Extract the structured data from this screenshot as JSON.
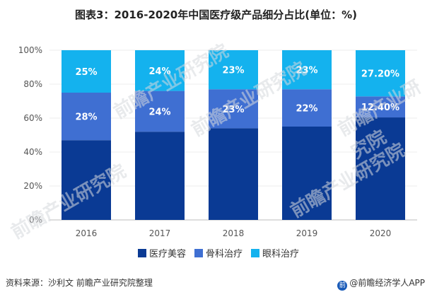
{
  "title": "图表3：2016-2020年中国医疗级产品细分占比(单位：%)",
  "footer": {
    "source": "资料来源：沙利文 前瞻产业研究院整理",
    "brand": "@前瞻经济学人APP"
  },
  "watermark_text": "前瞻产业研究院",
  "colors": {
    "medical_beauty": "#0a3a94",
    "orthopedic": "#3f6fd2",
    "ophthalmic": "#14b2ee"
  },
  "chart_data": {
    "type": "bar",
    "stacked": true,
    "categories": [
      "2016",
      "2017",
      "2018",
      "2019",
      "2020"
    ],
    "ylim": [
      0,
      100
    ],
    "yticks": [
      "0%",
      "20%",
      "40%",
      "60%",
      "80%",
      "100%"
    ],
    "ytick_values": [
      0,
      20,
      40,
      60,
      80,
      100
    ],
    "xlabel": "",
    "ylabel": "",
    "legend_position": "bottom",
    "series": [
      {
        "name": "医疗美容",
        "values": [
          47,
          52,
          54,
          55,
          60.4
        ],
        "labels": [
          "",
          "",
          "",
          "",
          ""
        ]
      },
      {
        "name": "骨科治疗",
        "values": [
          28,
          24,
          23,
          22,
          12.4
        ],
        "labels": [
          "28%",
          "24%",
          "23%",
          "22%",
          "12.40%"
        ]
      },
      {
        "name": "眼科治疗",
        "values": [
          25,
          24,
          23,
          23,
          27.2
        ],
        "labels": [
          "25%",
          "24%",
          "23%",
          "23%",
          "27.20%"
        ]
      }
    ]
  }
}
